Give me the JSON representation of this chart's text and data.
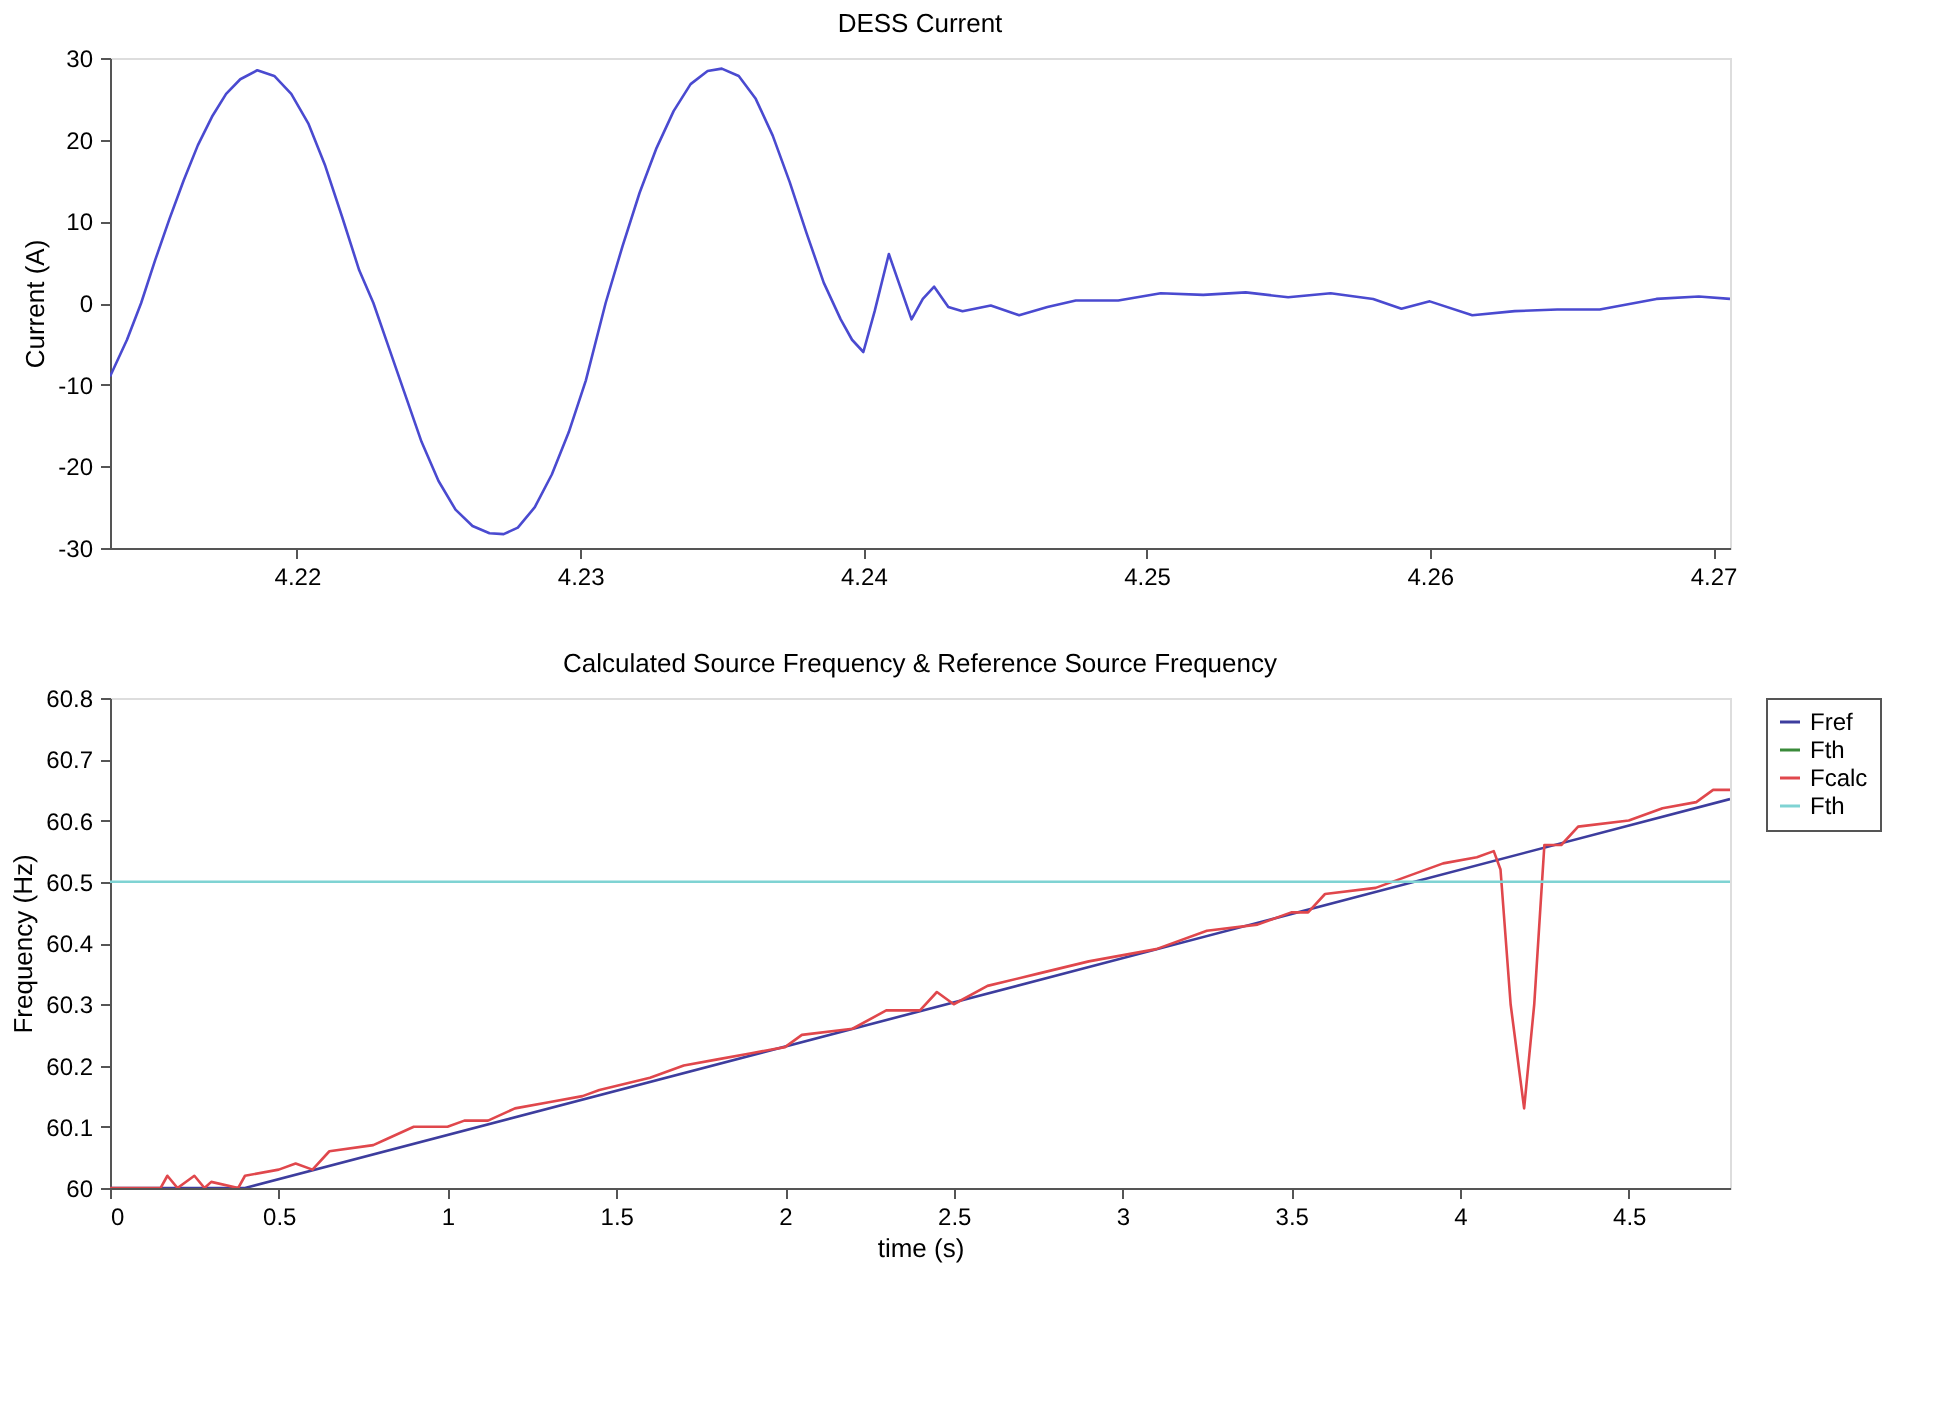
{
  "chart_data": [
    {
      "type": "line",
      "title": "DESS Current",
      "ylabel": "Current (A)",
      "xlim": [
        4.2134,
        4.2706
      ],
      "xticks": [
        4.22,
        4.23,
        4.24,
        4.25,
        4.26,
        4.27
      ],
      "ylim": [
        -30,
        30
      ],
      "yticks": [
        -30,
        -20,
        -10,
        0,
        10,
        20,
        30
      ],
      "grid": false,
      "marker": "none",
      "line_style": "solid",
      "x": [
        4.2134,
        4.214,
        4.2145,
        4.215,
        4.2155,
        4.216,
        4.2165,
        4.217,
        4.2175,
        4.218,
        4.2186,
        4.2192,
        4.2198,
        4.2204,
        4.221,
        4.2216,
        4.2222,
        4.2227,
        4.2232,
        4.2238,
        4.2244,
        4.225,
        4.2256,
        4.2262,
        4.2268,
        4.2273,
        4.2278,
        4.2284,
        4.229,
        4.2296,
        4.2302,
        4.2309,
        4.2315,
        4.2321,
        4.2327,
        4.2333,
        4.2339,
        4.2345,
        4.235,
        4.2356,
        4.2362,
        4.2368,
        4.2374,
        4.238,
        4.2386,
        4.2392,
        4.2396,
        4.24,
        4.2404,
        4.2409,
        4.2413,
        4.2417,
        4.2421,
        4.2425,
        4.243,
        4.2435,
        4.2445,
        4.2455,
        4.2465,
        4.2475,
        4.249,
        4.2505,
        4.252,
        4.2535,
        4.255,
        4.2565,
        4.258,
        4.259,
        4.26,
        4.2615,
        4.263,
        4.2645,
        4.266,
        4.268,
        4.2695,
        4.2706
      ],
      "series": [
        {
          "color": "#4a4ad0",
          "values": [
            -9,
            -4.5,
            0,
            5.3,
            10.3,
            15,
            19.3,
            22.8,
            25.6,
            27.4,
            28.5,
            27.8,
            25.6,
            22,
            16.8,
            10.5,
            4,
            0,
            -5,
            -11,
            -17,
            -21.8,
            -25.3,
            -27.3,
            -28.2,
            -28.3,
            -27.5,
            -25,
            -21,
            -15.8,
            -9.5,
            0,
            7,
            13.5,
            19,
            23.5,
            26.8,
            28.4,
            28.7,
            27.8,
            25,
            20.5,
            14.8,
            8.5,
            2.5,
            -2,
            -4.5,
            -6,
            -1,
            6,
            2,
            -2,
            0.5,
            2,
            -0.5,
            -1,
            -0.3,
            -1.5,
            -0.5,
            0.3,
            0.3,
            1.2,
            1,
            1.3,
            0.7,
            1.2,
            0.5,
            -0.7,
            0.2,
            -1.5,
            -1,
            -0.8,
            -0.8,
            0.5,
            0.8,
            0.5
          ]
        }
      ]
    },
    {
      "type": "line",
      "title": "Calculated Source Frequency & Reference Source Frequency",
      "xlabel": "time (s)",
      "ylabel": "Frequency (Hz)",
      "xlim": [
        0,
        4.8
      ],
      "xticks": [
        0,
        0.5,
        1,
        1.5,
        2,
        2.5,
        3,
        3.5,
        4,
        4.5
      ],
      "ylim": [
        60,
        60.8
      ],
      "yticks": [
        60,
        60.1,
        60.2,
        60.3,
        60.4,
        60.5,
        60.6,
        60.7,
        60.8
      ],
      "grid": false,
      "legend": "right",
      "marker": "none",
      "line_style": "solid",
      "series": [
        {
          "name": "Fref",
          "color": "#3d3d9e",
          "x": [
            0,
            0.4,
            4.8
          ],
          "values": [
            60,
            60,
            60.635
          ]
        },
        {
          "name": "Fth",
          "color": "#3a8a3a"
        },
        {
          "name": "Fcalc",
          "color": "#e0474c",
          "x": [
            0,
            0.15,
            0.17,
            0.2,
            0.25,
            0.28,
            0.3,
            0.38,
            0.4,
            0.5,
            0.55,
            0.6,
            0.65,
            0.78,
            0.82,
            0.9,
            1.0,
            1.05,
            1.12,
            1.2,
            1.3,
            1.4,
            1.45,
            1.6,
            1.7,
            1.8,
            1.9,
            2.0,
            2.05,
            2.2,
            2.3,
            2.4,
            2.45,
            2.5,
            2.6,
            2.75,
            2.9,
            3.1,
            3.25,
            3.4,
            3.5,
            3.55,
            3.6,
            3.75,
            3.85,
            3.95,
            4.05,
            4.1,
            4.12,
            4.15,
            4.19,
            4.22,
            4.25,
            4.3,
            4.35,
            4.5,
            4.6,
            4.7,
            4.75,
            4.8
          ],
          "values": [
            60,
            60,
            60.02,
            60,
            60.02,
            60,
            60.01,
            60,
            60.02,
            60.03,
            60.04,
            60.03,
            60.06,
            60.07,
            60.08,
            60.1,
            60.1,
            60.11,
            60.11,
            60.13,
            60.14,
            60.15,
            60.16,
            60.18,
            60.2,
            60.21,
            60.22,
            60.23,
            60.25,
            60.26,
            60.29,
            60.29,
            60.32,
            60.3,
            60.33,
            60.35,
            60.37,
            60.39,
            60.42,
            60.43,
            60.45,
            60.45,
            60.48,
            60.49,
            60.51,
            60.53,
            60.54,
            60.55,
            60.52,
            60.3,
            60.13,
            60.3,
            60.56,
            60.56,
            60.59,
            60.6,
            60.62,
            60.63,
            60.65,
            60.65
          ]
        },
        {
          "name": "Fth",
          "color": "#7fd3d3",
          "x": [
            0,
            4.8
          ],
          "values": [
            60.5,
            60.5
          ]
        }
      ]
    }
  ]
}
